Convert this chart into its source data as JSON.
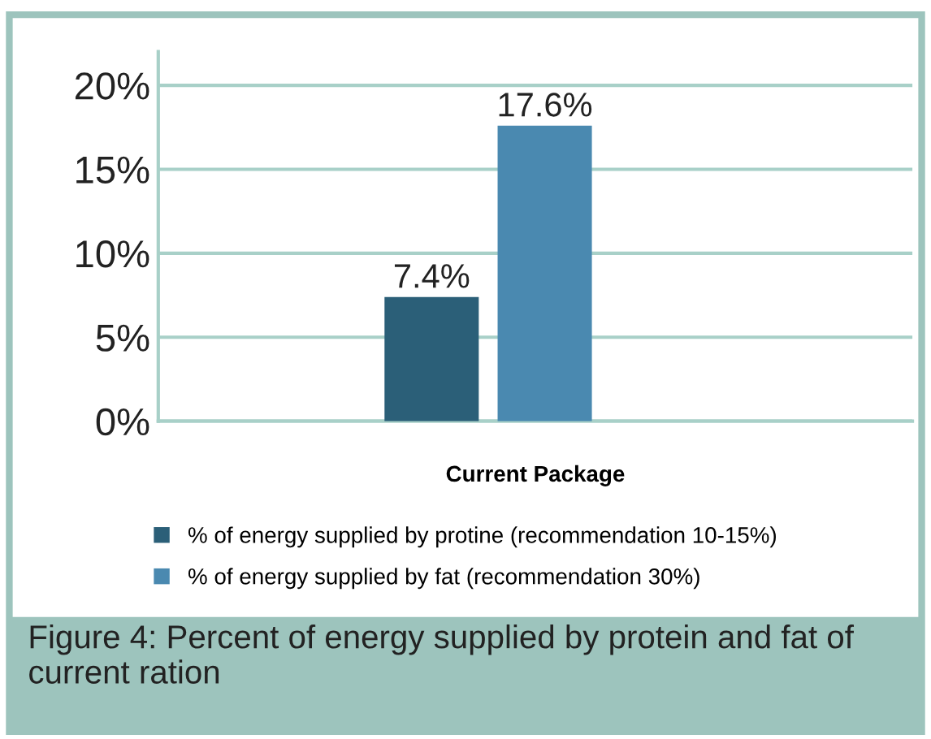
{
  "chart_data": {
    "type": "bar",
    "title": "Figure 4: Percent of energy supplied by protein and fat of current ration",
    "xlabel": "Current Package",
    "categories": [
      null
    ],
    "series": [
      {
        "name": "% of energy supplied by protine (recommendation 10-15%)",
        "color": "#2b5f78",
        "values": [
          7.4
        ],
        "value_labels": [
          "7.4%"
        ]
      },
      {
        "name": "% of energy supplied by fat (recommendation 30%)",
        "color": "#4a89b0",
        "values": [
          17.6
        ],
        "value_labels": [
          "17.6%"
        ]
      }
    ],
    "ylim": [
      0,
      22
    ],
    "yticks": [
      {
        "value": 0,
        "label": "0%"
      },
      {
        "value": 5,
        "label": "5%"
      },
      {
        "value": 10,
        "label": "10%"
      },
      {
        "value": 15,
        "label": "15%"
      },
      {
        "value": 20,
        "label": "20%"
      }
    ],
    "grid": "y",
    "legend": "bottom"
  }
}
